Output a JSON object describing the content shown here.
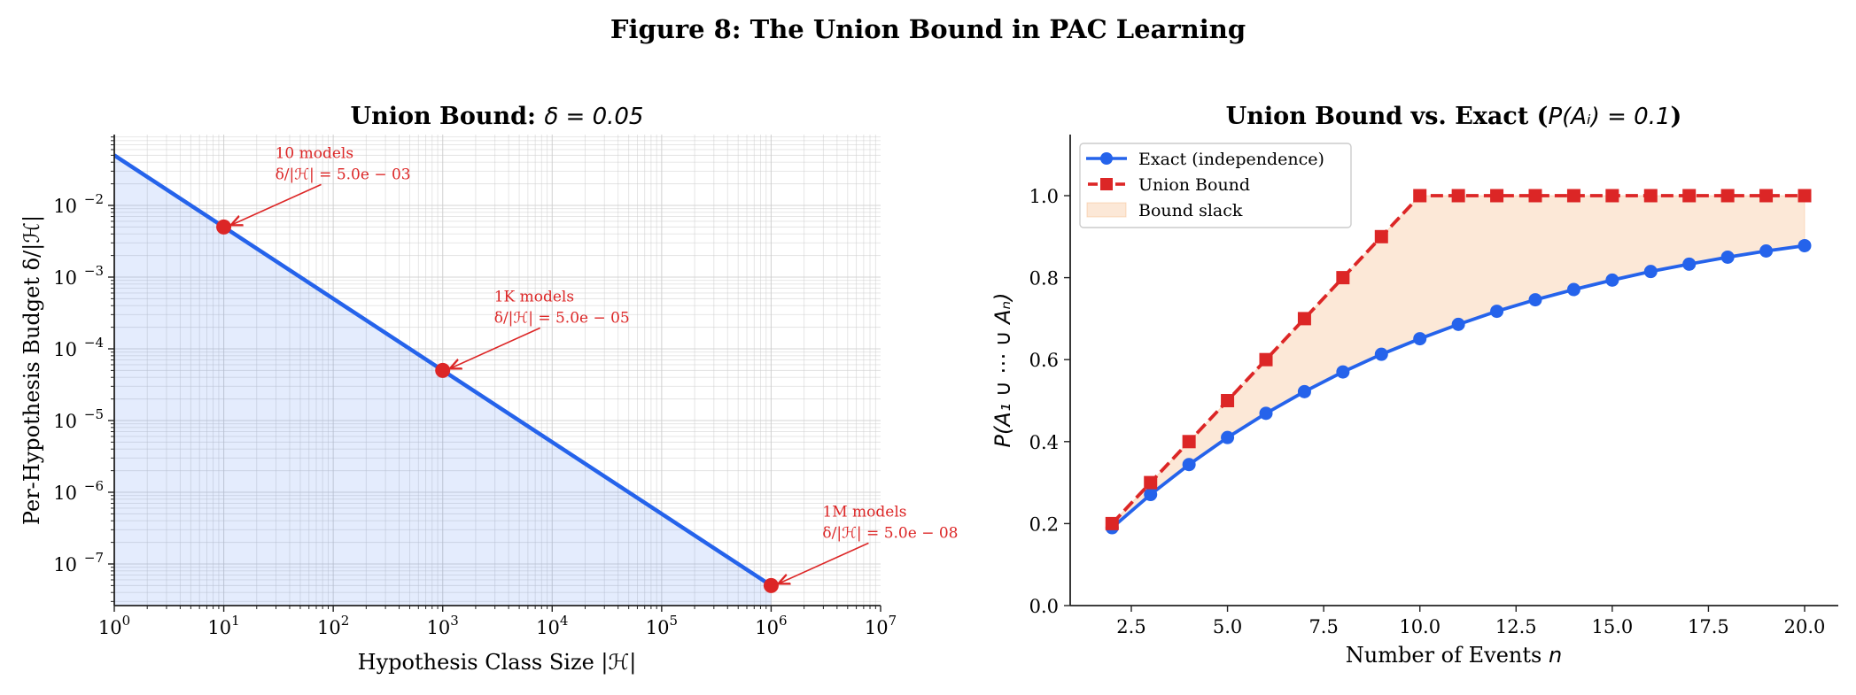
{
  "figure": {
    "title": "Figure 8: The Union Bound in PAC Learning"
  },
  "chart_data": [
    {
      "type": "line",
      "title": "Union Bound: δ = 0.05",
      "title_bold": "Union Bound:",
      "title_math": "δ = 0.05",
      "xlabel": "Hypothesis Class Size |ℋ|",
      "ylabel": "Per-Hypothesis Budget δ/|ℋ|",
      "xscale": "log",
      "yscale": "log",
      "xlim": [
        1,
        10000000
      ],
      "ylim": [
        2.5e-08,
        0.09
      ],
      "grid": true,
      "x_ticks": [
        {
          "exp": 0,
          "label": "10",
          "sup": "0"
        },
        {
          "exp": 1,
          "label": "10",
          "sup": "1"
        },
        {
          "exp": 2,
          "label": "10",
          "sup": "2"
        },
        {
          "exp": 3,
          "label": "10",
          "sup": "3"
        },
        {
          "exp": 4,
          "label": "10",
          "sup": "4"
        },
        {
          "exp": 5,
          "label": "10",
          "sup": "5"
        },
        {
          "exp": 6,
          "label": "10",
          "sup": "6"
        },
        {
          "exp": 7,
          "label": "10",
          "sup": "7"
        }
      ],
      "y_ticks": [
        {
          "exp": -2,
          "label": "10",
          "sup": "−2"
        },
        {
          "exp": -3,
          "label": "10",
          "sup": "−3"
        },
        {
          "exp": -4,
          "label": "10",
          "sup": "−4"
        },
        {
          "exp": -5,
          "label": "10",
          "sup": "−5"
        },
        {
          "exp": -6,
          "label": "10",
          "sup": "−6"
        },
        {
          "exp": -7,
          "label": "10",
          "sup": "−7"
        }
      ],
      "series": [
        {
          "name": "δ/|ℋ|",
          "color": "#2563eb",
          "x": [
            1,
            1000000
          ],
          "y": [
            0.05,
            5e-08
          ],
          "fill_below": true,
          "fill_color": "#2563eb",
          "fill_alpha": 0.12
        }
      ],
      "highlight_points": [
        {
          "x": 10,
          "y": 0.005,
          "label1": "10 models",
          "label2": "δ/|ℋ| = 5.0e − 03"
        },
        {
          "x": 1000,
          "y": 5e-05,
          "label1": "1K models",
          "label2": "δ/|ℋ| = 5.0e − 05"
        },
        {
          "x": 1000000,
          "y": 5e-08,
          "label1": "1M models",
          "label2": "δ/|ℋ| = 5.0e − 08"
        }
      ],
      "annotation_color": "#dc2626"
    },
    {
      "type": "line",
      "title": "Union Bound vs. Exact (P(Aᵢ) = 0.1)",
      "title_bold": "Union Bound vs. Exact (",
      "title_math": "P(Aᵢ) = 0.1",
      "title_end": ")",
      "xlabel": "Number of Events n",
      "ylabel": "P(A₁ ∪ ⋯ ∪ Aₙ)",
      "xlim": [
        1.2,
        20.8
      ],
      "ylim": [
        0.0,
        1.15
      ],
      "grid": false,
      "x_ticks": [
        "2.5",
        "5.0",
        "7.5",
        "10.0",
        "12.5",
        "15.0",
        "17.5",
        "20.0"
      ],
      "x_tick_values": [
        2.5,
        5.0,
        7.5,
        10.0,
        12.5,
        15.0,
        17.5,
        20.0
      ],
      "y_ticks": [
        "0.0",
        "0.2",
        "0.4",
        "0.6",
        "0.8",
        "1.0"
      ],
      "y_tick_values": [
        0.0,
        0.2,
        0.4,
        0.6,
        0.8,
        1.0
      ],
      "x": [
        2,
        3,
        4,
        5,
        6,
        7,
        8,
        9,
        10,
        11,
        12,
        13,
        14,
        15,
        16,
        17,
        18,
        19,
        20
      ],
      "series": [
        {
          "name": "Exact (independence)",
          "color": "#2563eb",
          "marker": "circle",
          "linestyle": "solid",
          "values": [
            0.19,
            0.271,
            0.344,
            0.41,
            0.469,
            0.522,
            0.57,
            0.613,
            0.651,
            0.686,
            0.718,
            0.746,
            0.771,
            0.794,
            0.815,
            0.833,
            0.85,
            0.865,
            0.878
          ]
        },
        {
          "name": "Union Bound",
          "color": "#dc2626",
          "marker": "square",
          "linestyle": "dashed",
          "values": [
            0.2,
            0.3,
            0.4,
            0.5,
            0.6,
            0.7,
            0.8,
            0.9,
            1.0,
            1.0,
            1.0,
            1.0,
            1.0,
            1.0,
            1.0,
            1.0,
            1.0,
            1.0,
            1.0
          ]
        }
      ],
      "fill_between": {
        "name": "Bound slack",
        "color": "#f4a261",
        "alpha": 0.25
      },
      "legend": {
        "position": "upper left",
        "entries": [
          "Exact (independence)",
          "Union Bound",
          "Bound slack"
        ]
      }
    }
  ]
}
